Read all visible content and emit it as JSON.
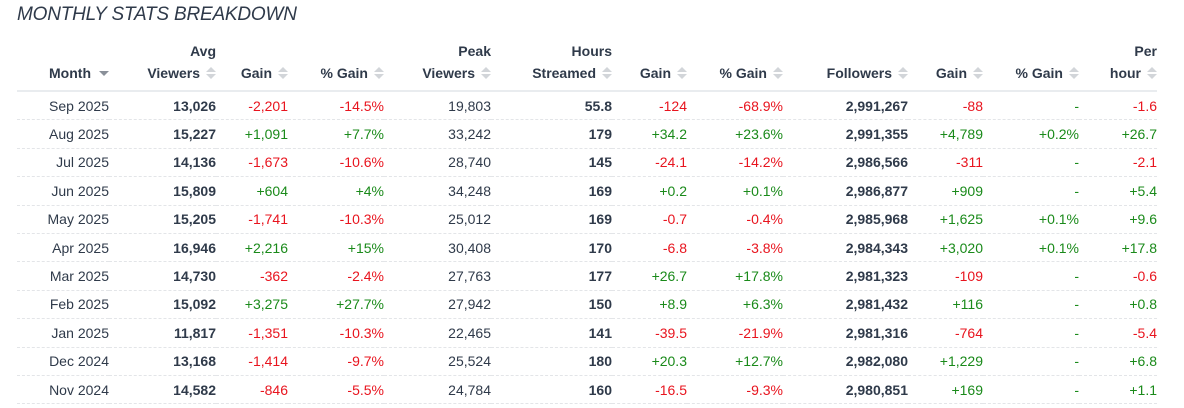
{
  "title": "MONTHLY STATS BREAKDOWN",
  "colors": {
    "positive": "#1a8a1a",
    "negative": "#e8141e",
    "text": "#2f3a4a"
  },
  "columns": [
    {
      "line1": "",
      "line2": "Month",
      "sort": "desc"
    },
    {
      "line1": "Avg",
      "line2": "Viewers",
      "sort": "none"
    },
    {
      "line1": "",
      "line2": "Gain",
      "sort": "none"
    },
    {
      "line1": "",
      "line2": "% Gain",
      "sort": "none"
    },
    {
      "line1": "Peak",
      "line2": "Viewers",
      "sort": "none"
    },
    {
      "line1": "Hours",
      "line2": "Streamed",
      "sort": "none"
    },
    {
      "line1": "",
      "line2": "Gain",
      "sort": "none"
    },
    {
      "line1": "",
      "line2": "% Gain",
      "sort": "none"
    },
    {
      "line1": "",
      "line2": "Followers",
      "sort": "none"
    },
    {
      "line1": "",
      "line2": "Gain",
      "sort": "none"
    },
    {
      "line1": "",
      "line2": "% Gain",
      "sort": "none"
    },
    {
      "line1": "Per",
      "line2": "hour",
      "sort": "none"
    }
  ],
  "rows": [
    {
      "month": "Sep 2025",
      "avg_viewers": "13,026",
      "avg_gain": "-2,201",
      "avg_pgain": "-14.5%",
      "peak_viewers": "19,803",
      "hours": "55.8",
      "hours_gain": "-124",
      "hours_pgain": "-68.9%",
      "followers": "2,991,267",
      "foll_gain": "-88",
      "foll_pgain": "-",
      "per_hour": "-1.6"
    },
    {
      "month": "Aug 2025",
      "avg_viewers": "15,227",
      "avg_gain": "+1,091",
      "avg_pgain": "+7.7%",
      "peak_viewers": "33,242",
      "hours": "179",
      "hours_gain": "+34.2",
      "hours_pgain": "+23.6%",
      "followers": "2,991,355",
      "foll_gain": "+4,789",
      "foll_pgain": "+0.2%",
      "per_hour": "+26.7"
    },
    {
      "month": "Jul 2025",
      "avg_viewers": "14,136",
      "avg_gain": "-1,673",
      "avg_pgain": "-10.6%",
      "peak_viewers": "28,740",
      "hours": "145",
      "hours_gain": "-24.1",
      "hours_pgain": "-14.2%",
      "followers": "2,986,566",
      "foll_gain": "-311",
      "foll_pgain": "-",
      "per_hour": "-2.1"
    },
    {
      "month": "Jun 2025",
      "avg_viewers": "15,809",
      "avg_gain": "+604",
      "avg_pgain": "+4%",
      "peak_viewers": "34,248",
      "hours": "169",
      "hours_gain": "+0.2",
      "hours_pgain": "+0.1%",
      "followers": "2,986,877",
      "foll_gain": "+909",
      "foll_pgain": "-",
      "per_hour": "+5.4"
    },
    {
      "month": "May 2025",
      "avg_viewers": "15,205",
      "avg_gain": "-1,741",
      "avg_pgain": "-10.3%",
      "peak_viewers": "25,012",
      "hours": "169",
      "hours_gain": "-0.7",
      "hours_pgain": "-0.4%",
      "followers": "2,985,968",
      "foll_gain": "+1,625",
      "foll_pgain": "+0.1%",
      "per_hour": "+9.6"
    },
    {
      "month": "Apr 2025",
      "avg_viewers": "16,946",
      "avg_gain": "+2,216",
      "avg_pgain": "+15%",
      "peak_viewers": "30,408",
      "hours": "170",
      "hours_gain": "-6.8",
      "hours_pgain": "-3.8%",
      "followers": "2,984,343",
      "foll_gain": "+3,020",
      "foll_pgain": "+0.1%",
      "per_hour": "+17.8"
    },
    {
      "month": "Mar 2025",
      "avg_viewers": "14,730",
      "avg_gain": "-362",
      "avg_pgain": "-2.4%",
      "peak_viewers": "27,763",
      "hours": "177",
      "hours_gain": "+26.7",
      "hours_pgain": "+17.8%",
      "followers": "2,981,323",
      "foll_gain": "-109",
      "foll_pgain": "-",
      "per_hour": "-0.6"
    },
    {
      "month": "Feb 2025",
      "avg_viewers": "15,092",
      "avg_gain": "+3,275",
      "avg_pgain": "+27.7%",
      "peak_viewers": "27,942",
      "hours": "150",
      "hours_gain": "+8.9",
      "hours_pgain": "+6.3%",
      "followers": "2,981,432",
      "foll_gain": "+116",
      "foll_pgain": "-",
      "per_hour": "+0.8"
    },
    {
      "month": "Jan 2025",
      "avg_viewers": "11,817",
      "avg_gain": "-1,351",
      "avg_pgain": "-10.3%",
      "peak_viewers": "22,465",
      "hours": "141",
      "hours_gain": "-39.5",
      "hours_pgain": "-21.9%",
      "followers": "2,981,316",
      "foll_gain": "-764",
      "foll_pgain": "-",
      "per_hour": "-5.4"
    },
    {
      "month": "Dec 2024",
      "avg_viewers": "13,168",
      "avg_gain": "-1,414",
      "avg_pgain": "-9.7%",
      "peak_viewers": "25,524",
      "hours": "180",
      "hours_gain": "+20.3",
      "hours_pgain": "+12.7%",
      "followers": "2,982,080",
      "foll_gain": "+1,229",
      "foll_pgain": "-",
      "per_hour": "+6.8"
    },
    {
      "month": "Nov 2024",
      "avg_viewers": "14,582",
      "avg_gain": "-846",
      "avg_pgain": "-5.5%",
      "peak_viewers": "24,784",
      "hours": "160",
      "hours_gain": "-16.5",
      "hours_pgain": "-9.3%",
      "followers": "2,980,851",
      "foll_gain": "+169",
      "foll_pgain": "-",
      "per_hour": "+1.1"
    }
  ]
}
